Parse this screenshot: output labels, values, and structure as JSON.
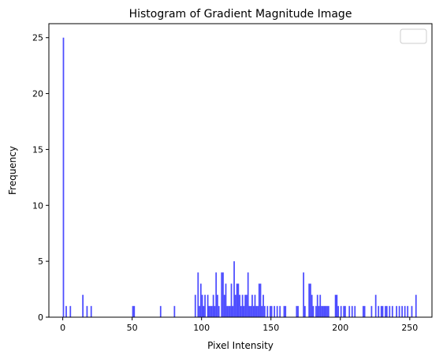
{
  "chart_data": {
    "type": "histogram",
    "title": "Histogram of Gradient Magnitude Image",
    "xlabel": "Pixel Intensity",
    "ylabel": "Frequency",
    "color": "#0000ff",
    "alpha": 0.7,
    "bins": [
      0,
      1,
      2,
      3,
      4,
      5,
      6,
      7,
      8,
      9,
      10,
      11,
      12,
      13,
      14,
      15,
      16,
      17,
      18,
      19,
      20,
      21,
      22,
      23,
      24,
      25,
      26,
      27,
      28,
      29,
      30,
      31,
      32,
      33,
      34,
      35,
      36,
      37,
      38,
      39,
      40,
      41,
      42,
      43,
      44,
      45,
      46,
      47,
      48,
      49,
      50,
      51,
      52,
      53,
      54,
      55,
      56,
      57,
      58,
      59,
      60,
      61,
      62,
      63,
      64,
      65,
      66,
      67,
      68,
      69,
      70,
      71,
      72,
      73,
      74,
      75,
      76,
      77,
      78,
      79,
      80,
      81,
      82,
      83,
      84,
      85,
      86,
      87,
      88,
      89,
      90,
      91,
      92,
      93,
      94,
      95,
      96,
      97,
      98,
      99,
      100,
      101,
      102,
      103,
      104,
      105,
      106,
      107,
      108,
      109,
      110,
      111,
      112,
      113,
      114,
      115,
      116,
      117,
      118,
      119,
      120,
      121,
      122,
      123,
      124,
      125,
      126,
      127,
      128,
      129,
      130,
      131,
      132,
      133,
      134,
      135,
      136,
      137,
      138,
      139,
      140,
      141,
      142,
      143,
      144,
      145,
      146,
      147,
      148,
      149,
      150,
      151,
      152,
      153,
      154,
      155,
      156,
      157,
      158,
      159,
      160,
      161,
      162,
      163,
      164,
      165,
      166,
      167,
      168,
      169,
      170,
      171,
      172,
      173,
      174,
      175,
      176,
      177,
      178,
      179,
      180,
      181,
      182,
      183,
      184,
      185,
      186,
      187,
      188,
      189,
      190,
      191,
      192,
      193,
      194,
      195,
      196,
      197,
      198,
      199,
      200,
      201,
      202,
      203,
      204,
      205,
      206,
      207,
      208,
      209,
      210,
      211,
      212,
      213,
      214,
      215,
      216,
      217,
      218,
      219,
      220,
      221,
      222,
      223,
      224,
      225,
      226,
      227,
      228,
      229,
      230,
      231,
      232,
      233,
      234,
      235,
      236,
      237,
      238,
      239,
      240,
      241,
      242,
      243,
      244,
      245,
      246,
      247,
      248,
      249,
      250,
      251,
      252,
      253,
      254,
      255,
      256
    ],
    "counts": [
      25,
      0,
      1,
      0,
      0,
      1,
      0,
      0,
      0,
      0,
      0,
      0,
      0,
      0,
      2,
      0,
      0,
      1,
      0,
      0,
      1,
      0,
      0,
      0,
      0,
      0,
      0,
      0,
      0,
      0,
      0,
      0,
      0,
      0,
      0,
      0,
      0,
      0,
      0,
      0,
      0,
      0,
      0,
      0,
      0,
      0,
      0,
      0,
      0,
      0,
      1,
      1,
      0,
      0,
      0,
      0,
      0,
      0,
      0,
      0,
      0,
      0,
      0,
      0,
      0,
      0,
      0,
      0,
      0,
      0,
      1,
      0,
      0,
      0,
      0,
      0,
      0,
      0,
      0,
      0,
      1,
      0,
      0,
      0,
      0,
      0,
      0,
      0,
      0,
      0,
      0,
      0,
      0,
      0,
      0,
      2,
      0,
      4,
      1,
      3,
      2,
      1,
      2,
      0,
      2,
      1,
      1,
      1,
      2,
      1,
      4,
      2,
      1,
      0,
      4,
      4,
      2,
      3,
      1,
      1,
      1,
      3,
      1,
      5,
      2,
      3,
      3,
      2,
      1,
      2,
      1,
      2,
      2,
      4,
      1,
      1,
      2,
      1,
      2,
      1,
      1,
      3,
      3,
      1,
      2,
      1,
      0,
      1,
      0,
      1,
      1,
      0,
      1,
      0,
      1,
      0,
      1,
      0,
      0,
      1,
      1,
      0,
      0,
      0,
      0,
      0,
      0,
      0,
      1,
      1,
      0,
      0,
      0,
      4,
      1,
      0,
      0,
      3,
      3,
      2,
      1,
      0,
      1,
      2,
      1,
      2,
      1,
      1,
      1,
      1,
      1,
      1,
      0,
      0,
      0,
      0,
      2,
      2,
      1,
      0,
      1,
      0,
      1,
      1,
      0,
      0,
      1,
      0,
      1,
      0,
      1,
      0,
      0,
      0,
      0,
      0,
      1,
      1,
      0,
      0,
      0,
      0,
      1,
      0,
      0,
      2,
      0,
      1,
      0,
      1,
      1,
      0,
      1,
      1,
      0,
      1,
      0,
      1,
      0,
      0,
      1,
      0,
      1,
      0,
      1,
      0,
      1,
      0,
      1,
      0,
      0,
      1,
      0,
      0,
      2,
      0
    ],
    "xlim": [
      -10,
      266
    ],
    "ylim": [
      0,
      26.25
    ],
    "xticks": [
      0,
      50,
      100,
      150,
      200,
      250
    ],
    "yticks": [
      0,
      5,
      10,
      15,
      20,
      25
    ]
  }
}
